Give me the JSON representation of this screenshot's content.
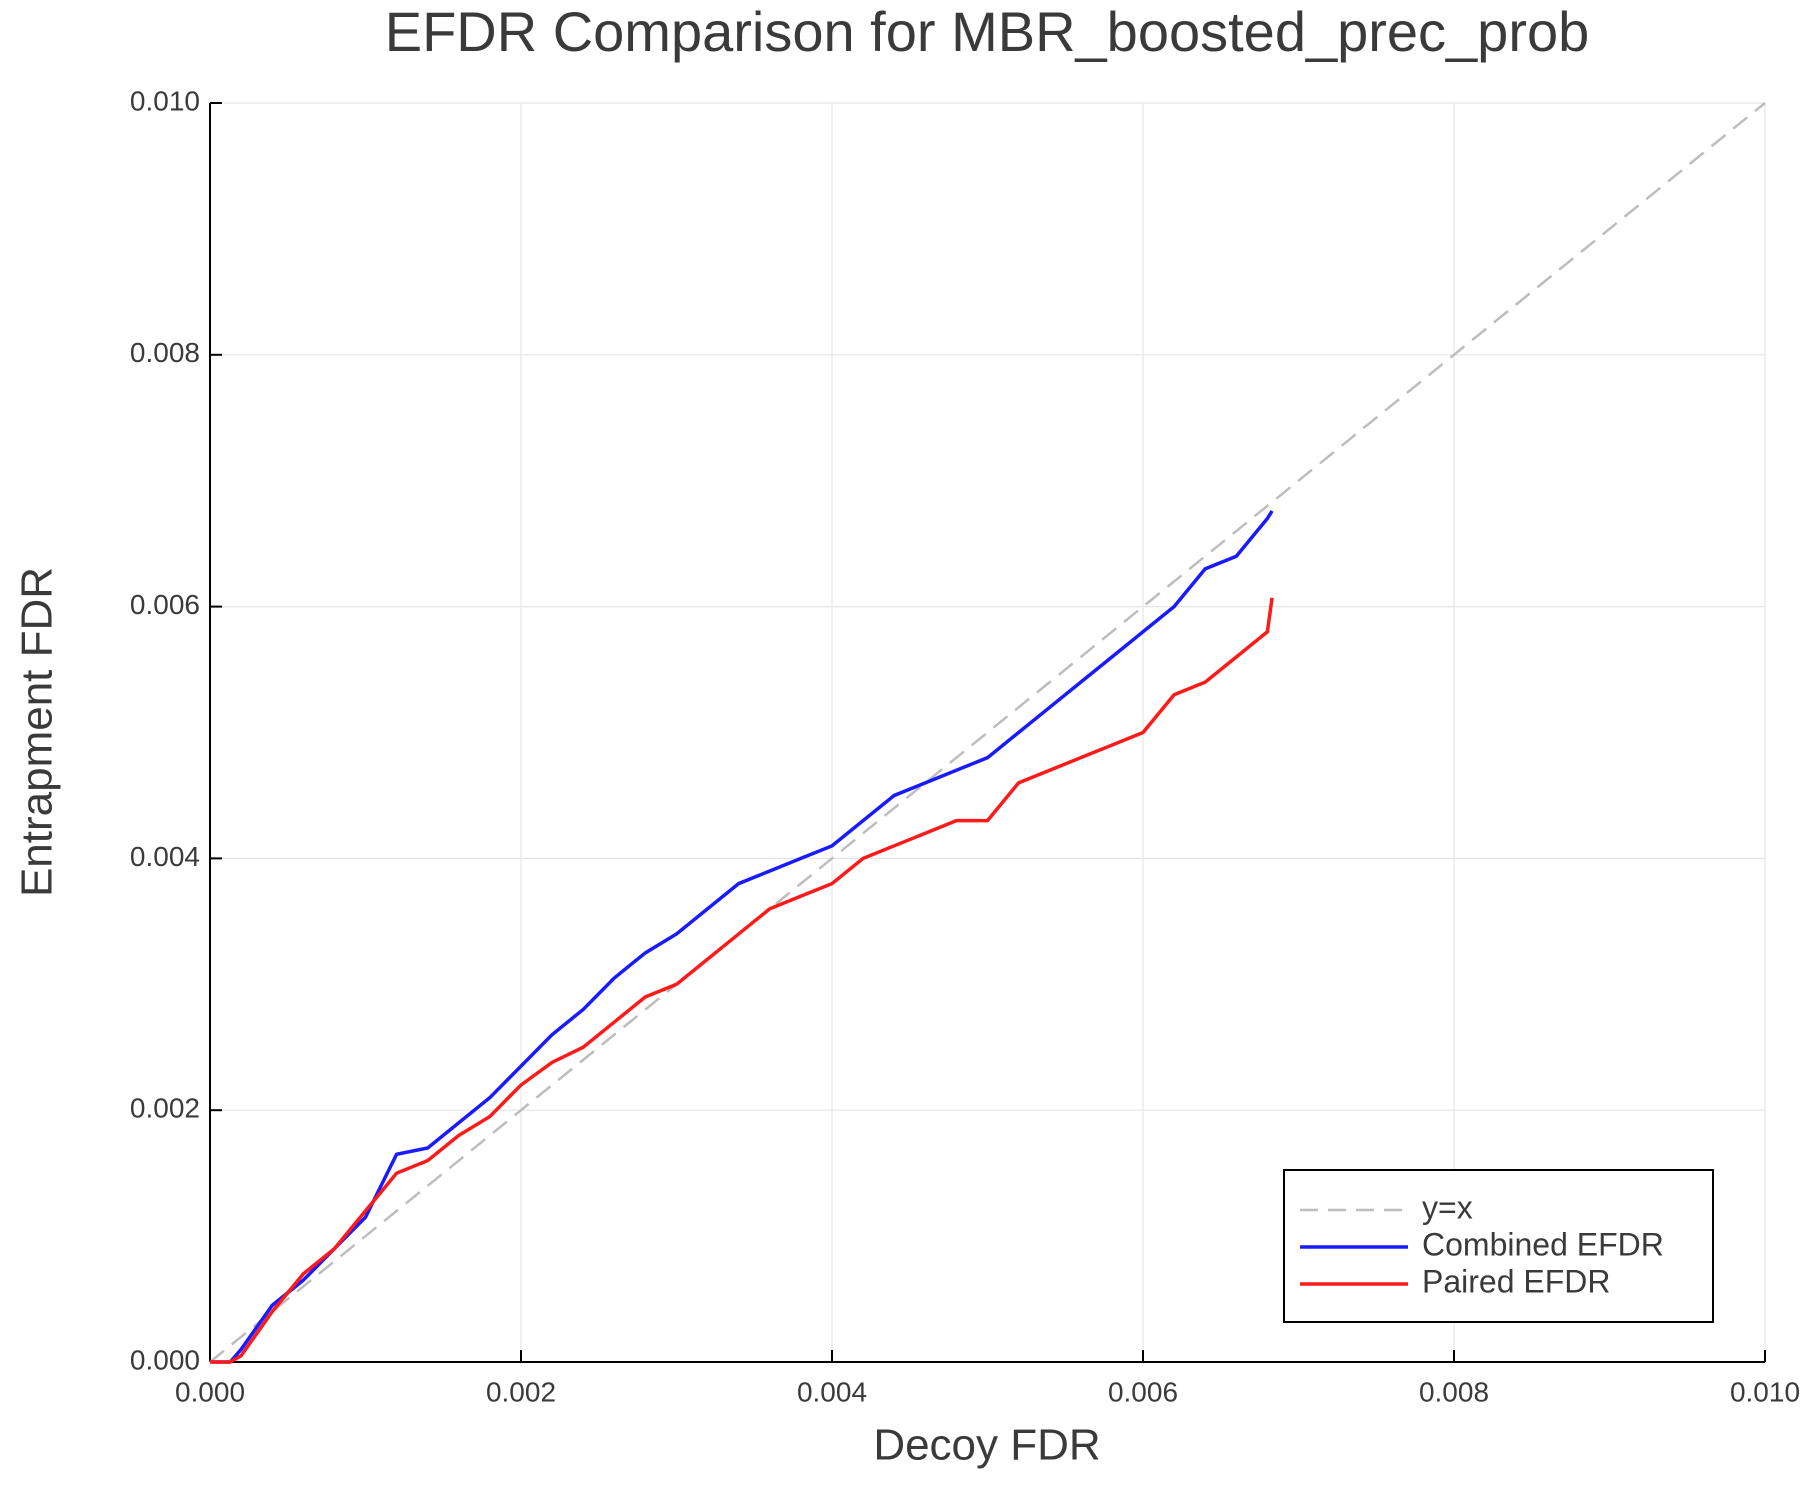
{
  "chart_data": {
    "type": "line",
    "title": "EFDR Comparison for MBR_boosted_prec_prob",
    "x_label": "Decoy FDR",
    "y_label": "Entrapment FDR",
    "xlim": [
      0,
      0.01
    ],
    "ylim": [
      0,
      0.01
    ],
    "xticks": [
      {
        "value": 0,
        "label": "0.000"
      },
      {
        "value": 0.002,
        "label": "0.002"
      },
      {
        "value": 0.004,
        "label": "0.004"
      },
      {
        "value": 0.006,
        "label": "0.006"
      },
      {
        "value": 0.008,
        "label": "0.008"
      },
      {
        "value": 0.01,
        "label": "0.010"
      }
    ],
    "yticks": [
      {
        "value": 0,
        "label": "0.000"
      },
      {
        "value": 0.002,
        "label": "0.002"
      },
      {
        "value": 0.004,
        "label": "0.004"
      },
      {
        "value": 0.006,
        "label": "0.006"
      },
      {
        "value": 0.008,
        "label": "0.008"
      },
      {
        "value": 0.01,
        "label": "0.010"
      }
    ],
    "grid": true,
    "legend": "lower right",
    "series": [
      {
        "name": "y=x",
        "color": "#bdbdbd",
        "dashed": true,
        "x": [
          0,
          0.01
        ],
        "values": [
          0,
          0.01
        ]
      },
      {
        "name": "Combined EFDR",
        "color": "#1a1aff",
        "dashed": false,
        "x": [
          0,
          0.00013,
          0.0002,
          0.0004,
          0.0006,
          0.0008,
          0.001,
          0.0012,
          0.0014,
          0.0016,
          0.0018,
          0.002,
          0.0022,
          0.0024,
          0.0026,
          0.0028,
          0.003,
          0.0032,
          0.0034,
          0.0036,
          0.0038,
          0.004,
          0.0042,
          0.0044,
          0.0046,
          0.0048,
          0.005,
          0.0052,
          0.0054,
          0.0056,
          0.0058,
          0.006,
          0.0062,
          0.0064,
          0.0066,
          0.0068,
          0.00683
        ],
        "values": [
          0,
          0,
          0.0001,
          0.00045,
          0.00065,
          0.0009,
          0.00115,
          0.00165,
          0.0017,
          0.0019,
          0.0021,
          0.00235,
          0.0026,
          0.0028,
          0.00305,
          0.00325,
          0.0034,
          0.0036,
          0.0038,
          0.0039,
          0.004,
          0.0041,
          0.0043,
          0.0045,
          0.0046,
          0.0047,
          0.0048,
          0.005,
          0.0052,
          0.0054,
          0.0056,
          0.0058,
          0.006,
          0.0063,
          0.0064,
          0.0067,
          0.00676
        ]
      },
      {
        "name": "Paired EFDR",
        "color": "#ff1a1a",
        "dashed": false,
        "x": [
          0,
          0.00013,
          0.0002,
          0.0004,
          0.0006,
          0.0008,
          0.001,
          0.0012,
          0.0014,
          0.0016,
          0.0018,
          0.002,
          0.0022,
          0.0024,
          0.0026,
          0.0028,
          0.003,
          0.0032,
          0.0034,
          0.0036,
          0.0038,
          0.004,
          0.0042,
          0.0044,
          0.0046,
          0.0048,
          0.005,
          0.0052,
          0.0054,
          0.0056,
          0.0058,
          0.006,
          0.0062,
          0.0064,
          0.0066,
          0.0068,
          0.00683
        ],
        "values": [
          0,
          0,
          5e-05,
          0.0004,
          0.0007,
          0.0009,
          0.0012,
          0.0015,
          0.0016,
          0.0018,
          0.00195,
          0.0022,
          0.00238,
          0.0025,
          0.0027,
          0.0029,
          0.003,
          0.0032,
          0.0034,
          0.0036,
          0.0037,
          0.0038,
          0.004,
          0.0041,
          0.0042,
          0.0043,
          0.0043,
          0.0046,
          0.0047,
          0.0048,
          0.0049,
          0.005,
          0.0053,
          0.0054,
          0.0056,
          0.0058,
          0.00607
        ]
      }
    ]
  }
}
